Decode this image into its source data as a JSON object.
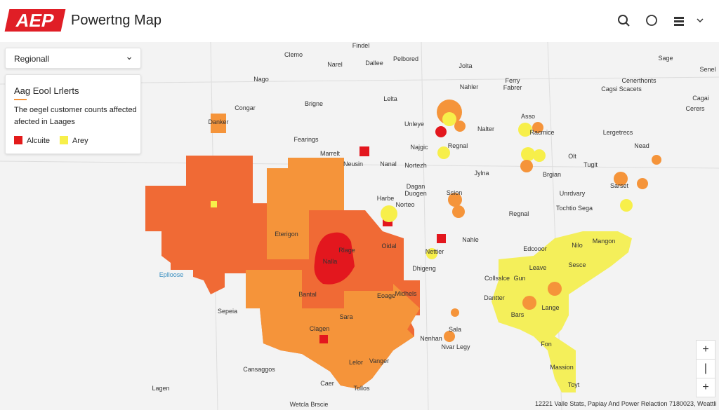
{
  "header": {
    "logo": "AEP",
    "title": "Powertng Map"
  },
  "region_select": {
    "label": "Regionall",
    "arrow": "⌄"
  },
  "legend": {
    "title": "Aag Eool Lrlerts",
    "description": [
      "The oegel customer counts affected",
      "afected in Laages"
    ],
    "items": [
      {
        "label": "Alcuite",
        "color": "#e31b1b"
      },
      {
        "label": "Arey",
        "color": "#f7ef4a"
      }
    ]
  },
  "map": {
    "labels": [
      "Findel",
      "Clemo",
      "Narel",
      "Dallee",
      "Pelbored",
      "Jolta",
      "Nago",
      "Nahler",
      "Ferry",
      "Fabrer",
      "Cenerthonts",
      "Sage",
      "Senel",
      "Cagsi Scacets",
      "Cagai",
      "Congar",
      "Brigne",
      "Lelta",
      "Cerers",
      "Unleye",
      "Nalter",
      "Asso",
      "Racmice",
      "Danker",
      "Lergetrecs",
      "Fearings",
      "Najgic",
      "Regnal",
      "Nead",
      "Marrelt",
      "Neusin",
      "Nanal",
      "Nortezh",
      "Olt",
      "Tugit",
      "Brgian",
      "Jylna",
      "Unrdvary",
      "Tochtio Sega",
      "Regnal",
      "Dagan",
      "Duogen",
      "Harbe",
      "Norteo",
      "Ssion",
      "Eterigon",
      "Nahle",
      "Rlage",
      "Oidal",
      "Nettier",
      "Edcooor",
      "Nilo",
      "Mangon",
      "Eplloose",
      "Leave",
      "Sesce",
      "Dhigeng",
      "Collsslce",
      "Midhels",
      "Bantal",
      "Dantter",
      "Lange",
      "Sepeia",
      "Bars",
      "Sara",
      "Sala",
      "Nenhan",
      "Nvar Legy",
      "Fon",
      "Lelor",
      "Vanger",
      "Massion",
      "Cansaggos",
      "Caer",
      "Tollos",
      "Lagen",
      "Toyt",
      "Wetcla Brscie",
      "Sarset",
      "Nalla",
      "Eoage",
      "Clagen",
      "Gun"
    ],
    "zoom": [
      "+",
      "|",
      "+"
    ],
    "attribution": "12221 Valle Stats, Papiay And Power Relaction 7180023, Weattli"
  }
}
